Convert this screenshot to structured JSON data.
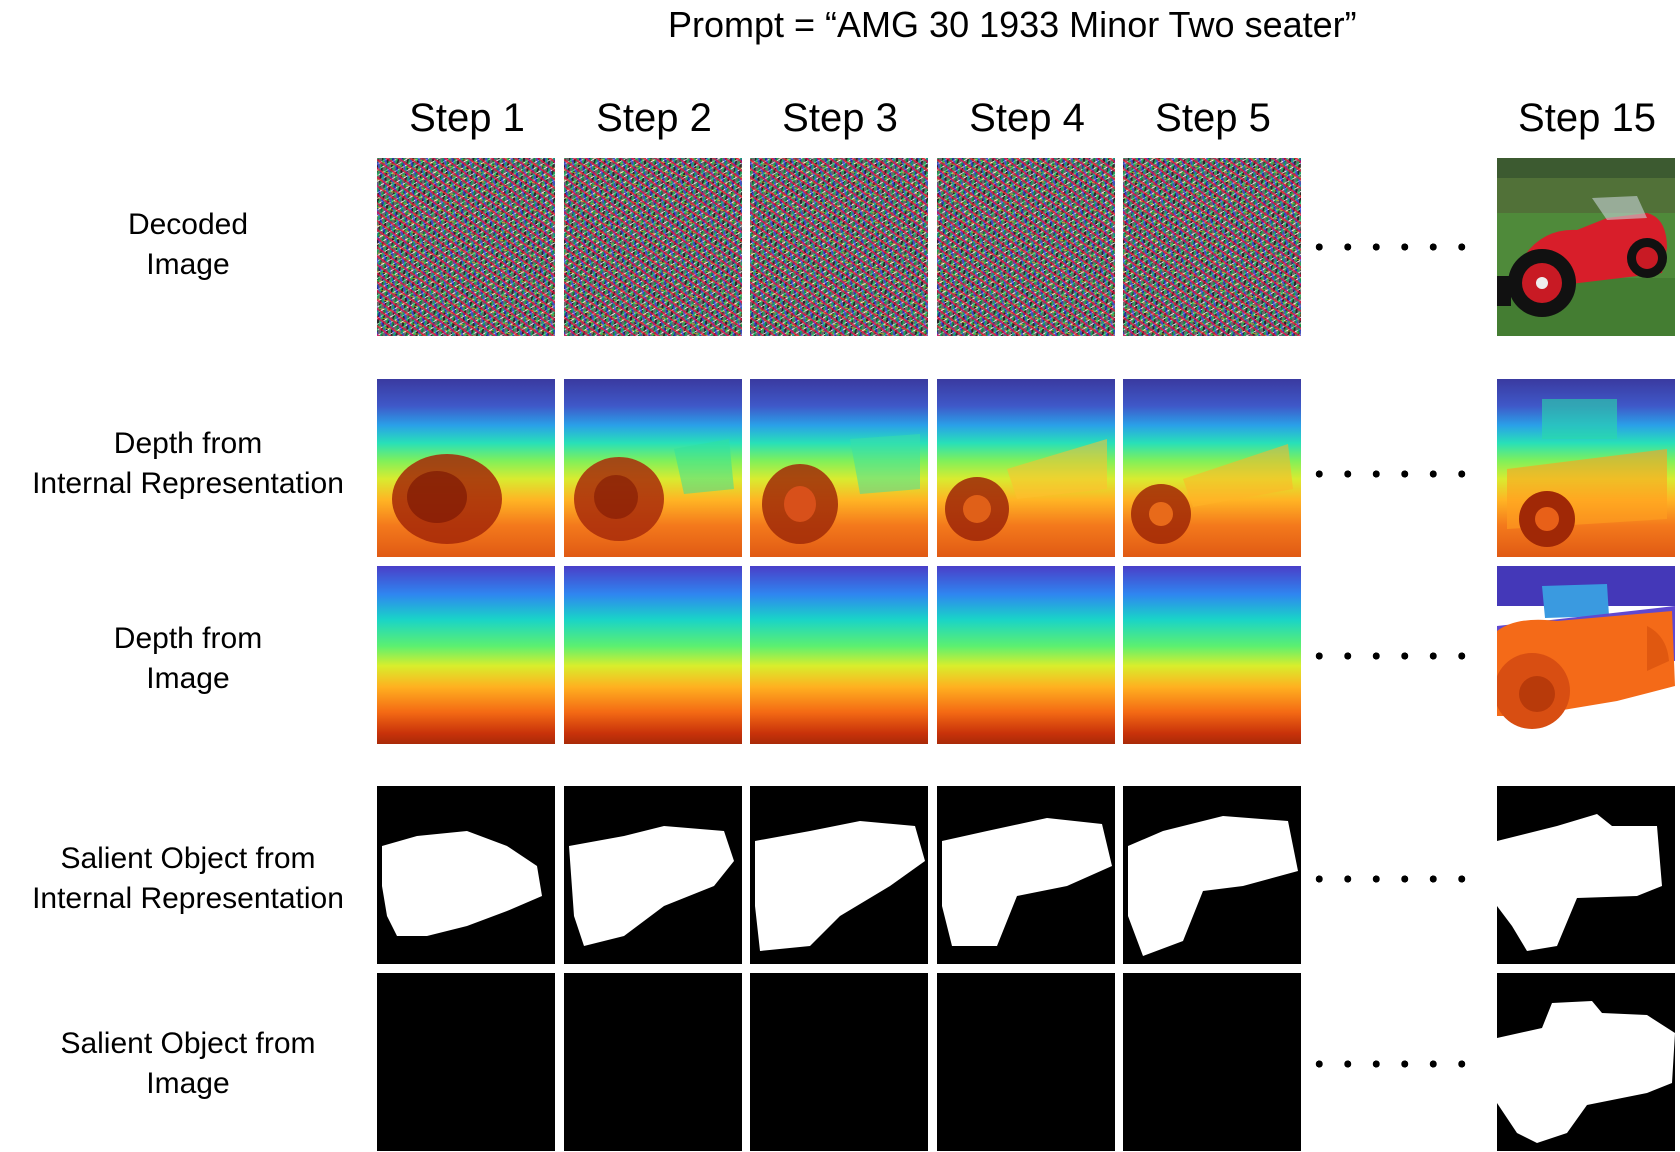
{
  "prompt": "Prompt = “AMG 30 1933 Minor Two seater”",
  "columns": [
    "Step 1",
    "Step 2",
    "Step 3",
    "Step 4",
    "Step 5",
    "Step 15"
  ],
  "rows": [
    {
      "label_line1": "Decoded",
      "label_line2": "Image"
    },
    {
      "label_line1": "Depth from",
      "label_line2": "Internal Representation"
    },
    {
      "label_line1": "Depth from",
      "label_line2": "Image"
    },
    {
      "label_line1": "Salient Object from",
      "label_line2": "Internal Representation"
    },
    {
      "label_line1": "Salient Object from",
      "label_line2": "Image"
    }
  ],
  "ellipsis": "......",
  "colors": {
    "background": "#ffffff",
    "mask_fg": "#ffffff",
    "mask_bg": "#000000",
    "car_red": "#d81e2a"
  }
}
